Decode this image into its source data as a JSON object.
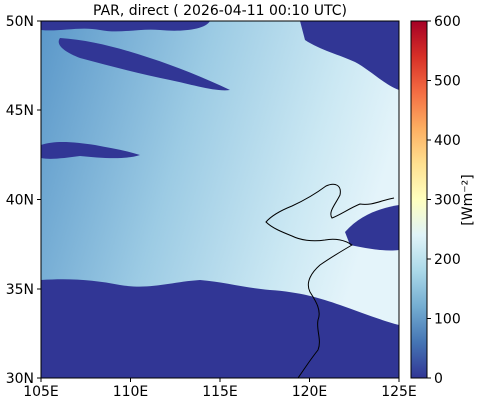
{
  "title": "PAR, direct ( 2026-04-11 00:10 UTC)",
  "map": {
    "lon_range": [
      105,
      125
    ],
    "lat_range": [
      30,
      50
    ],
    "x_ticks": [
      "105E",
      "110E",
      "115E",
      "120E",
      "125E"
    ],
    "y_ticks": [
      "50N",
      "45N",
      "40N",
      "35N",
      "30N"
    ],
    "no_data_color": "#313695",
    "field_low_color": "#4f8fc4",
    "field_high_color": "#e4f4fa",
    "coastline_color": "#000000"
  },
  "colorbar": {
    "label": "[Wm⁻²]",
    "range": [
      0,
      600
    ],
    "tick_labels": [
      "0",
      "100",
      "200",
      "300",
      "400",
      "500",
      "600"
    ],
    "colormap": "RdYlBu_r",
    "stops": [
      "#313695",
      "#4575b4",
      "#74add1",
      "#abd9e9",
      "#e0f3f8",
      "#ffffbf",
      "#fee090",
      "#fdae61",
      "#f46d43",
      "#d73027",
      "#a50026"
    ]
  }
}
